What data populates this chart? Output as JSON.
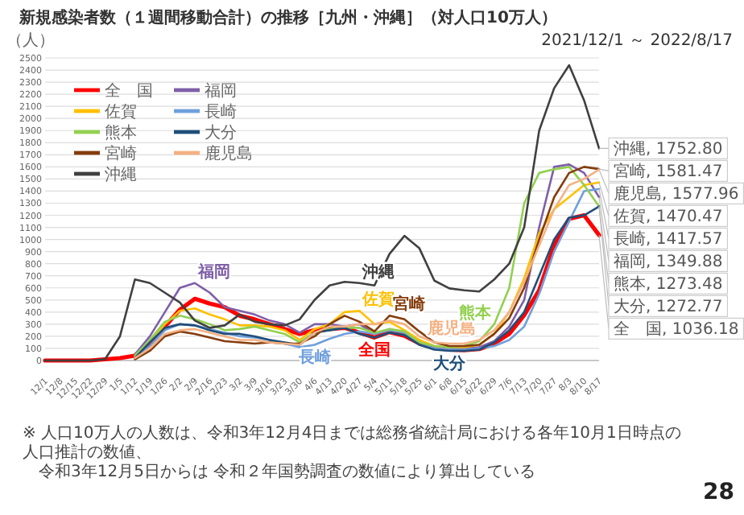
{
  "chart_data": {
    "type": "line",
    "title": "新規感染者数（１週間移動合計）の推移［九州・沖縄］（対人口10万人）",
    "subtitle": "2021/12/1 ～ 2022/8/17",
    "ylabel": "（人）",
    "x": [
      "2021-12-01",
      "2021-12-08",
      "2021-12-15",
      "2021-12-22",
      "2021-12-29",
      "2022-01-05",
      "2022-01-12",
      "2022-01-19",
      "2022-01-26",
      "2022-02-02",
      "2022-02-09",
      "2022-02-16",
      "2022-02-23",
      "2022-03-02",
      "2022-03-09",
      "2022-03-16",
      "2022-03-23",
      "2022-03-30",
      "2022-04-06",
      "2022-04-13",
      "2022-04-20",
      "2022-04-27",
      "2022-05-04",
      "2022-05-11",
      "2022-05-18",
      "2022-05-25",
      "2022-06-01",
      "2022-06-08",
      "2022-06-15",
      "2022-06-22",
      "2022-06-29",
      "2022-07-06",
      "2022-07-13",
      "2022-07-20",
      "2022-07-27",
      "2022-08-03",
      "2022-08-10",
      "2022-08-17"
    ],
    "xlim": [
      "2021-12-01",
      "2022-08-17"
    ],
    "xticks": [
      {
        "value": "2021-12-01",
        "label": "12/1"
      },
      {
        "value": "2021-12-08",
        "label": "12/8"
      },
      {
        "value": "2021-12-15",
        "label": "12/15"
      },
      {
        "value": "2021-12-22",
        "label": "12/22"
      },
      {
        "value": "2021-12-29",
        "label": "12/29"
      },
      {
        "value": "2022-01-05",
        "label": "1/5"
      },
      {
        "value": "2022-01-12",
        "label": "1/12"
      },
      {
        "value": "2022-01-19",
        "label": "1/19"
      },
      {
        "value": "2022-01-26",
        "label": "1/26"
      },
      {
        "value": "2022-02-02",
        "label": "2/2"
      },
      {
        "value": "2022-02-09",
        "label": "2/9"
      },
      {
        "value": "2022-02-16",
        "label": "2/16"
      },
      {
        "value": "2022-02-23",
        "label": "2/23"
      },
      {
        "value": "2022-03-02",
        "label": "3/2"
      },
      {
        "value": "2022-03-09",
        "label": "3/9"
      },
      {
        "value": "2022-03-16",
        "label": "3/16"
      },
      {
        "value": "2022-03-23",
        "label": "3/23"
      },
      {
        "value": "2022-03-30",
        "label": "3/30"
      },
      {
        "value": "2022-04-06",
        "label": "4/6"
      },
      {
        "value": "2022-04-13",
        "label": "4/13"
      },
      {
        "value": "2022-04-20",
        "label": "4/20"
      },
      {
        "value": "2022-04-27",
        "label": "4/27"
      },
      {
        "value": "2022-05-04",
        "label": "5/4"
      },
      {
        "value": "2022-05-11",
        "label": "5/11"
      },
      {
        "value": "2022-05-18",
        "label": "5/18"
      },
      {
        "value": "2022-05-25",
        "label": "5/25"
      },
      {
        "value": "2022-06-01",
        "label": "6/1"
      },
      {
        "value": "2022-06-08",
        "label": "6/8"
      },
      {
        "value": "2022-06-15",
        "label": "6/15"
      },
      {
        "value": "2022-06-22",
        "label": "6/22"
      },
      {
        "value": "2022-06-29",
        "label": "6/29"
      },
      {
        "value": "2022-07-06",
        "label": "7/6"
      },
      {
        "value": "2022-07-13",
        "label": "7/13"
      },
      {
        "value": "2022-07-20",
        "label": "7/20"
      },
      {
        "value": "2022-07-27",
        "label": "7/27"
      },
      {
        "value": "2022-08-03",
        "label": "8/3"
      },
      {
        "value": "2022-08-10",
        "label": "8/10"
      },
      {
        "value": "2022-08-17",
        "label": "8/17"
      }
    ],
    "ylim": [
      0,
      2500
    ],
    "yticks": [
      0,
      100,
      200,
      300,
      400,
      500,
      600,
      700,
      800,
      900,
      1000,
      1100,
      1200,
      1300,
      1400,
      1500,
      1600,
      1700,
      1800,
      1900,
      2000,
      2100,
      2200,
      2300,
      2400,
      2500
    ],
    "grid": "y",
    "legend": "top left",
    "series": [
      {
        "name": "全　国",
        "color": "#ff0000",
        "values": [
          0,
          0,
          0,
          0,
          10,
          20,
          40,
          150,
          280,
          420,
          510,
          470,
          440,
          370,
          340,
          300,
          260,
          220,
          250,
          260,
          270,
          230,
          190,
          235,
          205,
          140,
          105,
          90,
          85,
          95,
          140,
          220,
          375,
          580,
          950,
          1170,
          1200,
          1036.18
        ],
        "value_labels": [
          null,
          null,
          null,
          null,
          null,
          null,
          null,
          null,
          null,
          null,
          null,
          null,
          null,
          null,
          null,
          null,
          null,
          null,
          null,
          null,
          null,
          null,
          null,
          null,
          null,
          null,
          null,
          null,
          null,
          null,
          null,
          null,
          null,
          null,
          null,
          null,
          null,
          "全　国, 1036.18"
        ]
      },
      {
        "name": "福岡",
        "color": "#7f5fa8",
        "values": [
          null,
          null,
          null,
          null,
          null,
          null,
          50,
          200,
          400,
          600,
          640,
          560,
          440,
          410,
          380,
          330,
          300,
          230,
          300,
          300,
          280,
          300,
          220,
          260,
          230,
          150,
          110,
          100,
          100,
          110,
          160,
          280,
          500,
          1100,
          1600,
          1620,
          1550,
          1349.88
        ],
        "value_labels": [
          null,
          null,
          null,
          null,
          null,
          null,
          null,
          null,
          null,
          null,
          null,
          null,
          null,
          null,
          null,
          null,
          null,
          null,
          null,
          null,
          null,
          null,
          null,
          null,
          null,
          null,
          null,
          null,
          null,
          null,
          null,
          null,
          null,
          null,
          null,
          null,
          null,
          "福岡, 1349.88"
        ]
      },
      {
        "name": "佐賀",
        "color": "#ffc000",
        "values": [
          null,
          null,
          null,
          null,
          null,
          null,
          30,
          150,
          300,
          410,
          430,
          380,
          340,
          290,
          290,
          280,
          250,
          170,
          260,
          300,
          400,
          410,
          300,
          320,
          250,
          170,
          120,
          110,
          110,
          130,
          220,
          400,
          680,
          1050,
          1250,
          1350,
          1450,
          1470.47
        ],
        "value_labels": [
          null,
          null,
          null,
          null,
          null,
          null,
          null,
          null,
          null,
          null,
          null,
          null,
          null,
          null,
          null,
          null,
          null,
          null,
          null,
          null,
          null,
          null,
          null,
          null,
          null,
          null,
          null,
          null,
          null,
          null,
          null,
          null,
          null,
          null,
          null,
          null,
          null,
          "佐賀, 1470.47"
        ]
      },
      {
        "name": "長崎",
        "color": "#6f9fdc",
        "values": [
          null,
          null,
          null,
          null,
          null,
          null,
          20,
          120,
          250,
          300,
          290,
          260,
          230,
          200,
          190,
          170,
          140,
          110,
          130,
          180,
          220,
          240,
          220,
          250,
          230,
          130,
          100,
          90,
          90,
          100,
          120,
          170,
          280,
          550,
          900,
          1150,
          1400,
          1417.57
        ],
        "value_labels": [
          null,
          null,
          null,
          null,
          null,
          null,
          null,
          null,
          null,
          null,
          null,
          null,
          null,
          null,
          null,
          null,
          null,
          null,
          null,
          null,
          null,
          null,
          null,
          null,
          null,
          null,
          null,
          null,
          null,
          null,
          null,
          null,
          null,
          null,
          null,
          null,
          null,
          "長崎, 1417.57"
        ]
      },
      {
        "name": "熊本",
        "color": "#92d050",
        "values": [
          null,
          null,
          null,
          null,
          null,
          null,
          40,
          170,
          320,
          370,
          340,
          300,
          250,
          260,
          280,
          250,
          220,
          150,
          230,
          260,
          270,
          270,
          230,
          260,
          240,
          150,
          120,
          110,
          120,
          160,
          300,
          600,
          1300,
          1550,
          1580,
          1600,
          1450,
          1273.48
        ],
        "value_labels": [
          null,
          null,
          null,
          null,
          null,
          null,
          null,
          null,
          null,
          null,
          null,
          null,
          null,
          null,
          null,
          null,
          null,
          null,
          null,
          null,
          null,
          null,
          null,
          null,
          null,
          null,
          null,
          null,
          null,
          null,
          null,
          null,
          null,
          null,
          null,
          null,
          null,
          "熊本, 1273.48"
        ]
      },
      {
        "name": "大分",
        "color": "#1f4e79",
        "values": [
          null,
          null,
          null,
          null,
          null,
          null,
          20,
          150,
          270,
          300,
          290,
          250,
          220,
          220,
          200,
          170,
          150,
          130,
          230,
          250,
          270,
          220,
          190,
          230,
          210,
          130,
          90,
          80,
          80,
          90,
          150,
          250,
          400,
          700,
          1000,
          1180,
          1200,
          1272.77
        ],
        "value_labels": [
          null,
          null,
          null,
          null,
          null,
          null,
          null,
          null,
          null,
          null,
          null,
          null,
          null,
          null,
          null,
          null,
          null,
          null,
          null,
          null,
          null,
          null,
          null,
          null,
          null,
          null,
          null,
          null,
          null,
          null,
          null,
          null,
          null,
          null,
          null,
          null,
          null,
          "大分, 1272.77"
        ]
      },
      {
        "name": "宮崎",
        "color": "#843c0c",
        "values": [
          null,
          null,
          null,
          null,
          null,
          null,
          10,
          80,
          200,
          240,
          220,
          190,
          160,
          150,
          140,
          150,
          140,
          140,
          200,
          300,
          370,
          320,
          240,
          370,
          340,
          240,
          150,
          120,
          120,
          130,
          220,
          350,
          600,
          1000,
          1350,
          1550,
          1600,
          1581.47
        ],
        "value_labels": [
          null,
          null,
          null,
          null,
          null,
          null,
          null,
          null,
          null,
          null,
          null,
          null,
          null,
          null,
          null,
          null,
          null,
          null,
          null,
          null,
          null,
          null,
          null,
          null,
          null,
          null,
          null,
          null,
          null,
          null,
          null,
          null,
          null,
          null,
          null,
          null,
          null,
          "宮崎, 1581.47"
        ]
      },
      {
        "name": "鹿児島",
        "color": "#f4b183",
        "values": [
          null,
          null,
          null,
          null,
          null,
          null,
          20,
          100,
          220,
          250,
          260,
          230,
          200,
          170,
          170,
          150,
          140,
          130,
          230,
          280,
          280,
          300,
          300,
          330,
          300,
          200,
          150,
          140,
          140,
          170,
          250,
          400,
          650,
          950,
          1250,
          1450,
          1500,
          1577.96
        ],
        "value_labels": [
          null,
          null,
          null,
          null,
          null,
          null,
          null,
          null,
          null,
          null,
          null,
          null,
          null,
          null,
          null,
          null,
          null,
          null,
          null,
          null,
          null,
          null,
          null,
          null,
          null,
          null,
          null,
          null,
          null,
          null,
          null,
          null,
          null,
          null,
          null,
          null,
          null,
          "鹿児島, 1577.96"
        ]
      },
      {
        "name": "沖縄",
        "color": "#404040",
        "values": [
          0,
          0,
          0,
          0,
          10,
          200,
          670,
          640,
          560,
          480,
          330,
          270,
          290,
          380,
          320,
          300,
          290,
          340,
          500,
          620,
          650,
          640,
          620,
          880,
          1030,
          927,
          660,
          596,
          580,
          570,
          670,
          800,
          1100,
          1900,
          2250,
          2440,
          2150,
          1752.8
        ],
        "value_labels": [
          null,
          null,
          null,
          null,
          null,
          null,
          null,
          null,
          null,
          null,
          null,
          null,
          null,
          null,
          null,
          null,
          null,
          null,
          null,
          null,
          null,
          null,
          null,
          null,
          null,
          null,
          null,
          null,
          null,
          null,
          null,
          null,
          null,
          null,
          null,
          null,
          null,
          "沖縄, 1752.80"
        ]
      }
    ],
    "annotations": [
      {
        "text": "福岡",
        "x": "2022-02-09",
        "y": 640
      },
      {
        "text": "佐賀",
        "x": "2022-04-27",
        "y": 410
      },
      {
        "text": "長崎",
        "x": "2022-04-06",
        "y": 130
      },
      {
        "text": "沖縄",
        "x": "2022-04-27",
        "y": 640
      },
      {
        "text": "鹿児島",
        "x": "2022-06-22",
        "y": 170
      },
      {
        "text": "宮崎",
        "x": "2022-05-11",
        "y": 370
      },
      {
        "text": "熊本",
        "x": "2022-06-29",
        "y": 300
      },
      {
        "text": "全国",
        "x": "2022-05-04",
        "y": 190
      },
      {
        "text": "大分",
        "x": "2022-06-08",
        "y": 80
      },
      "※ 人口10万人の人数は、令和3年12月4日までは総務省統計局における各年10月1日時点の人口推計の数値、",
      "令和3年12月5日からは 令和２年国勢調査の数値により算出している",
      "28"
    ]
  }
}
